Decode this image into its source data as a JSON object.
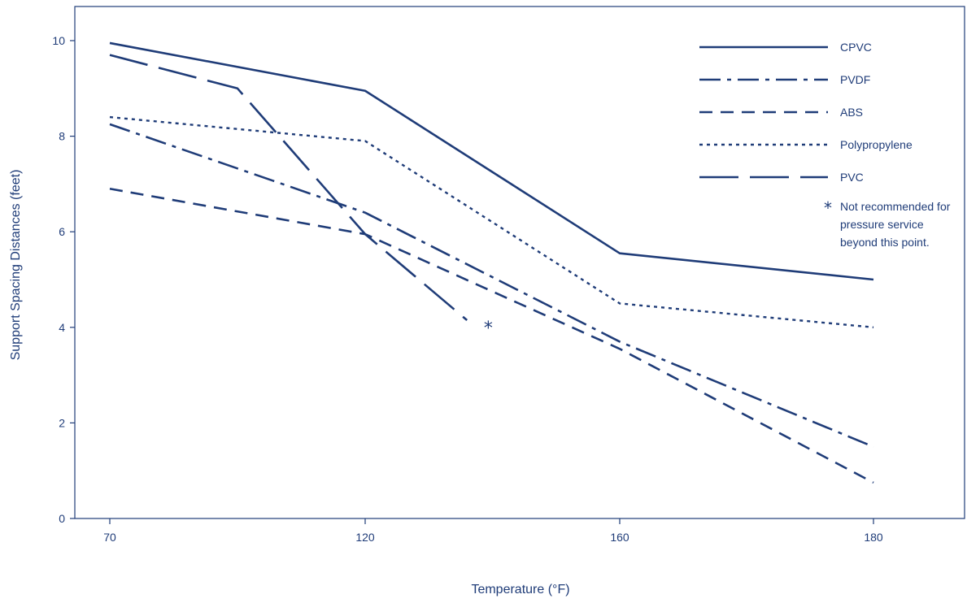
{
  "chart_data": {
    "type": "line",
    "title": "",
    "xlabel": "Temperature (°F)",
    "ylabel": "Support Spacing Distances (feet)",
    "x_categories": [
      "70",
      "120",
      "160",
      "180"
    ],
    "ylim": [
      0,
      10.8
    ],
    "y_ticks": [
      0,
      2,
      4,
      6,
      8,
      10
    ],
    "grid": false,
    "legend_position": "top-right",
    "series": [
      {
        "name": "CPVC",
        "style": "solid",
        "points": [
          [
            0,
            9.95
          ],
          [
            1,
            8.95
          ],
          [
            2,
            5.55
          ],
          [
            3,
            5.0
          ]
        ]
      },
      {
        "name": "PVDF",
        "style": "dashdot",
        "points": [
          [
            0,
            8.25
          ],
          [
            1,
            6.4
          ],
          [
            2,
            3.7
          ],
          [
            3,
            1.5
          ]
        ]
      },
      {
        "name": "ABS",
        "style": "dashed",
        "points": [
          [
            0,
            6.9
          ],
          [
            1,
            5.95
          ],
          [
            2,
            3.55
          ],
          [
            3,
            0.75
          ]
        ]
      },
      {
        "name": "Polypropylene",
        "style": "dotted",
        "points": [
          [
            0,
            8.4
          ],
          [
            1,
            7.9
          ],
          [
            2,
            4.5
          ],
          [
            3,
            4.0
          ]
        ]
      },
      {
        "name": "PVC",
        "style": "longdash",
        "points": [
          [
            0,
            9.7
          ],
          [
            0.5,
            9.0
          ],
          [
            1,
            5.95
          ],
          [
            1.4,
            4.15
          ]
        ]
      }
    ],
    "annotation": {
      "marker": "*",
      "text_lines": [
        "Not recommended for",
        "pressure service",
        "beyond this point."
      ],
      "at_point": [
        1.45,
        4.1
      ]
    },
    "color": "#1f3c78"
  }
}
